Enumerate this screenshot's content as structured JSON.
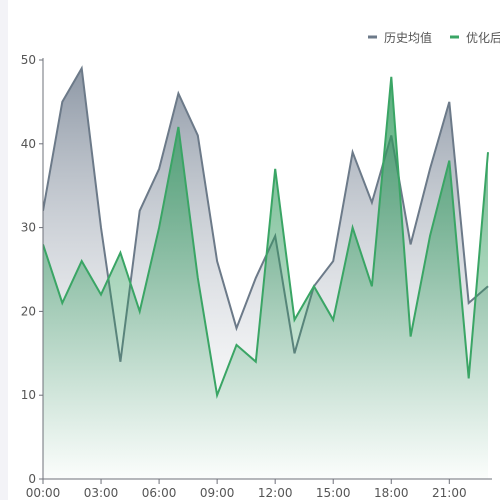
{
  "chart_data": {
    "type": "area",
    "title": "",
    "xlabel": "",
    "ylabel": "",
    "ylim": [
      0,
      50
    ],
    "y_ticks": [
      0,
      10,
      20,
      30,
      40,
      50
    ],
    "x_tick_labels": [
      "00:00",
      "03:00",
      "06:00",
      "09:00",
      "12:00",
      "15:00",
      "18:00",
      "21:00"
    ],
    "x_tick_hours": [
      0,
      3,
      6,
      9,
      12,
      15,
      18,
      21
    ],
    "x": [
      0,
      1,
      2,
      3,
      4,
      5,
      6,
      7,
      8,
      9,
      10,
      11,
      12,
      13,
      14,
      15,
      16,
      17,
      18,
      19,
      20,
      21,
      22,
      23
    ],
    "grid": false,
    "legend_position": "top-right",
    "series": [
      {
        "name": "历史均值",
        "color": "#6c7a89",
        "values": [
          32,
          45,
          49,
          30,
          14,
          32,
          37,
          46,
          41,
          26,
          18,
          24,
          29,
          15,
          23,
          26,
          39,
          33,
          41,
          28,
          37,
          45,
          21,
          23
        ]
      },
      {
        "name": "优化后",
        "color": "#3aa565",
        "values": [
          28,
          21,
          26,
          22,
          27,
          20,
          30,
          42,
          24,
          10,
          16,
          14,
          37,
          19,
          23,
          19,
          30,
          23,
          48,
          17,
          29,
          38,
          12,
          39
        ]
      }
    ]
  }
}
